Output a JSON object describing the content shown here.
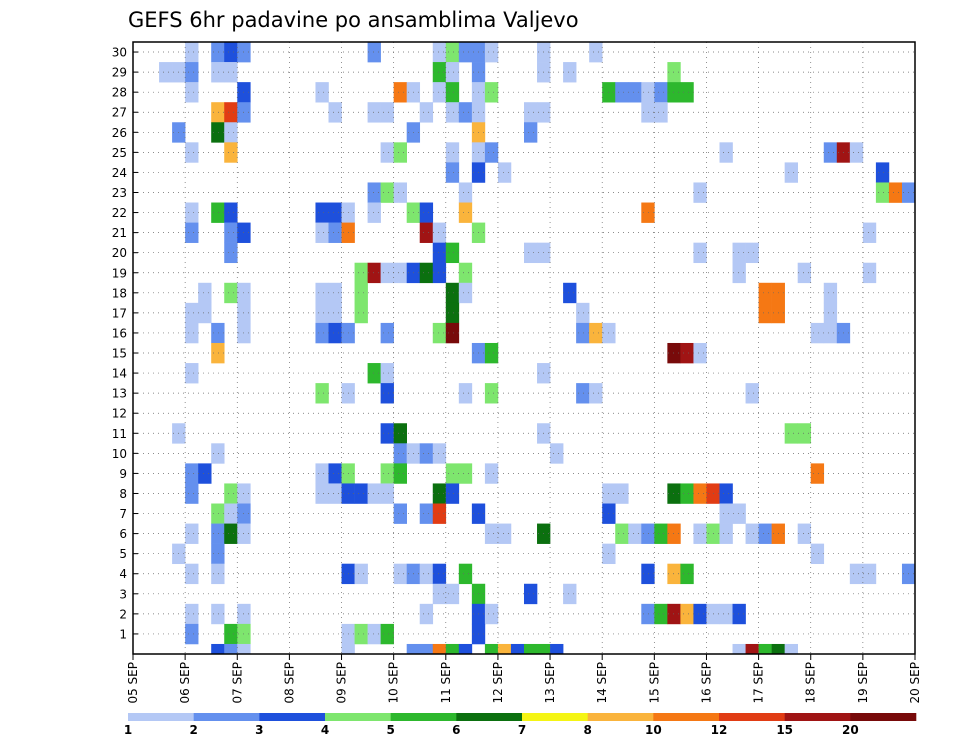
{
  "chart_data": {
    "type": "heatmap",
    "title": "GEFS 6hr padavine po ansamblima Valjevo",
    "xlabel": "",
    "ylabel": "",
    "x_tick_labels": [
      "05 SEP",
      "06 SEP",
      "07 SEP",
      "08 SEP",
      "09 SEP",
      "10 SEP",
      "11 SEP",
      "12 SEP",
      "13 SEP",
      "14 SEP",
      "15 SEP",
      "16 SEP",
      "17 SEP",
      "18 SEP",
      "19 SEP",
      "20 SEP"
    ],
    "y_tick_labels": [
      "1",
      "2",
      "3",
      "4",
      "5",
      "6",
      "7",
      "8",
      "9",
      "10",
      "11",
      "12",
      "13",
      "14",
      "15",
      "16",
      "17",
      "18",
      "19",
      "20",
      "21",
      "22",
      "23",
      "24",
      "25",
      "26",
      "27",
      "28",
      "29",
      "30"
    ],
    "x_steps": 60,
    "steps_per_day": 4,
    "grid": true,
    "colorbar": {
      "labels": [
        "1",
        "2",
        "3",
        "4",
        "5",
        "6",
        "7",
        "8",
        "10",
        "12",
        "15",
        "20"
      ],
      "colors": [
        "#b4c8f5",
        "#6490ee",
        "#1e50dc",
        "#7ee66e",
        "#2db82d",
        "#0b700f",
        "#f5f514",
        "#fab43c",
        "#f57814",
        "#e13c14",
        "#a01414",
        "#780a0a"
      ]
    },
    "cells": [
      [
        4,
        30,
        1
      ],
      [
        6,
        30,
        2
      ],
      [
        7,
        30,
        3
      ],
      [
        8,
        30,
        2
      ],
      [
        18,
        30,
        2
      ],
      [
        23,
        30,
        1
      ],
      [
        24,
        30,
        4
      ],
      [
        25,
        30,
        2
      ],
      [
        26,
        30,
        2
      ],
      [
        27,
        30,
        1
      ],
      [
        31,
        30,
        1
      ],
      [
        35,
        30,
        1
      ],
      [
        2,
        29,
        1
      ],
      [
        3,
        29,
        1
      ],
      [
        4,
        29,
        2
      ],
      [
        6,
        29,
        1
      ],
      [
        7,
        29,
        1
      ],
      [
        23,
        29,
        5
      ],
      [
        24,
        29,
        1
      ],
      [
        26,
        29,
        2
      ],
      [
        31,
        29,
        1
      ],
      [
        33,
        29,
        1
      ],
      [
        41,
        29,
        4
      ],
      [
        4,
        28,
        1
      ],
      [
        8,
        28,
        3
      ],
      [
        14,
        28,
        1
      ],
      [
        20,
        28,
        9
      ],
      [
        21,
        28,
        1
      ],
      [
        23,
        28,
        1
      ],
      [
        24,
        28,
        5
      ],
      [
        26,
        28,
        1
      ],
      [
        27,
        28,
        4
      ],
      [
        36,
        28,
        5
      ],
      [
        37,
        28,
        2
      ],
      [
        38,
        28,
        2
      ],
      [
        39,
        28,
        1
      ],
      [
        40,
        28,
        2
      ],
      [
        41,
        28,
        5
      ],
      [
        42,
        28,
        5
      ],
      [
        6,
        27,
        8
      ],
      [
        7,
        27,
        10
      ],
      [
        8,
        27,
        2
      ],
      [
        15,
        27,
        1
      ],
      [
        18,
        27,
        1
      ],
      [
        19,
        27,
        1
      ],
      [
        22,
        27,
        1
      ],
      [
        24,
        27,
        1
      ],
      [
        25,
        27,
        2
      ],
      [
        26,
        27,
        1
      ],
      [
        30,
        27,
        1
      ],
      [
        31,
        27,
        1
      ],
      [
        39,
        27,
        1
      ],
      [
        40,
        27,
        1
      ],
      [
        3,
        26,
        2
      ],
      [
        6,
        26,
        6
      ],
      [
        7,
        26,
        1
      ],
      [
        21,
        26,
        2
      ],
      [
        26,
        26,
        8
      ],
      [
        30,
        26,
        2
      ],
      [
        4,
        25,
        1
      ],
      [
        7,
        25,
        8
      ],
      [
        19,
        25,
        1
      ],
      [
        20,
        25,
        4
      ],
      [
        24,
        25,
        1
      ],
      [
        26,
        25,
        1
      ],
      [
        27,
        25,
        2
      ],
      [
        45,
        25,
        1
      ],
      [
        53,
        25,
        2
      ],
      [
        54,
        25,
        11
      ],
      [
        55,
        25,
        1
      ],
      [
        24,
        24,
        2
      ],
      [
        26,
        24,
        3
      ],
      [
        28,
        24,
        1
      ],
      [
        50,
        24,
        1
      ],
      [
        57,
        24,
        3
      ],
      [
        18,
        23,
        2
      ],
      [
        19,
        23,
        4
      ],
      [
        20,
        23,
        1
      ],
      [
        25,
        23,
        1
      ],
      [
        43,
        23,
        1
      ],
      [
        57,
        23,
        4
      ],
      [
        58,
        23,
        9
      ],
      [
        59,
        23,
        2
      ],
      [
        4,
        22,
        1
      ],
      [
        6,
        22,
        5
      ],
      [
        7,
        22,
        3
      ],
      [
        14,
        22,
        3
      ],
      [
        15,
        22,
        3
      ],
      [
        16,
        22,
        1
      ],
      [
        18,
        22,
        1
      ],
      [
        21,
        22,
        4
      ],
      [
        22,
        22,
        3
      ],
      [
        25,
        22,
        8
      ],
      [
        39,
        22,
        9
      ],
      [
        4,
        21,
        2
      ],
      [
        7,
        21,
        2
      ],
      [
        8,
        21,
        3
      ],
      [
        14,
        21,
        1
      ],
      [
        15,
        21,
        2
      ],
      [
        16,
        21,
        9
      ],
      [
        22,
        21,
        11
      ],
      [
        23,
        21,
        1
      ],
      [
        26,
        21,
        4
      ],
      [
        56,
        21,
        1
      ],
      [
        7,
        20,
        2
      ],
      [
        23,
        20,
        3
      ],
      [
        24,
        20,
        5
      ],
      [
        30,
        20,
        1
      ],
      [
        31,
        20,
        1
      ],
      [
        43,
        20,
        1
      ],
      [
        46,
        20,
        1
      ],
      [
        47,
        20,
        1
      ],
      [
        17,
        19,
        4
      ],
      [
        18,
        19,
        11
      ],
      [
        19,
        19,
        1
      ],
      [
        20,
        19,
        1
      ],
      [
        21,
        19,
        3
      ],
      [
        22,
        19,
        6
      ],
      [
        23,
        19,
        3
      ],
      [
        25,
        19,
        4
      ],
      [
        46,
        19,
        1
      ],
      [
        51,
        19,
        1
      ],
      [
        56,
        19,
        1
      ],
      [
        5,
        18,
        1
      ],
      [
        7,
        18,
        4
      ],
      [
        8,
        18,
        1
      ],
      [
        14,
        18,
        1
      ],
      [
        15,
        18,
        1
      ],
      [
        17,
        18,
        4
      ],
      [
        24,
        18,
        6
      ],
      [
        25,
        18,
        1
      ],
      [
        33,
        18,
        3
      ],
      [
        48,
        18,
        9
      ],
      [
        49,
        18,
        9
      ],
      [
        53,
        18,
        1
      ],
      [
        4,
        17,
        1
      ],
      [
        5,
        17,
        1
      ],
      [
        8,
        17,
        1
      ],
      [
        14,
        17,
        1
      ],
      [
        15,
        17,
        1
      ],
      [
        17,
        17,
        4
      ],
      [
        24,
        17,
        6
      ],
      [
        34,
        17,
        1
      ],
      [
        48,
        17,
        9
      ],
      [
        49,
        17,
        9
      ],
      [
        53,
        17,
        1
      ],
      [
        4,
        16,
        1
      ],
      [
        6,
        16,
        2
      ],
      [
        8,
        16,
        1
      ],
      [
        14,
        16,
        2
      ],
      [
        15,
        16,
        3
      ],
      [
        16,
        16,
        2
      ],
      [
        19,
        16,
        2
      ],
      [
        23,
        16,
        4
      ],
      [
        24,
        16,
        12
      ],
      [
        34,
        16,
        2
      ],
      [
        35,
        16,
        8
      ],
      [
        36,
        16,
        1
      ],
      [
        52,
        16,
        1
      ],
      [
        53,
        16,
        1
      ],
      [
        54,
        16,
        2
      ],
      [
        6,
        15,
        8
      ],
      [
        26,
        15,
        2
      ],
      [
        27,
        15,
        5
      ],
      [
        41,
        15,
        12
      ],
      [
        42,
        15,
        11
      ],
      [
        43,
        15,
        1
      ],
      [
        4,
        14,
        1
      ],
      [
        18,
        14,
        5
      ],
      [
        19,
        14,
        1
      ],
      [
        31,
        14,
        1
      ],
      [
        14,
        13,
        4
      ],
      [
        16,
        13,
        1
      ],
      [
        19,
        13,
        3
      ],
      [
        25,
        13,
        1
      ],
      [
        27,
        13,
        4
      ],
      [
        34,
        13,
        2
      ],
      [
        35,
        13,
        1
      ],
      [
        47,
        13,
        1
      ],
      [
        3,
        11,
        1
      ],
      [
        19,
        11,
        3
      ],
      [
        20,
        11,
        6
      ],
      [
        31,
        11,
        1
      ],
      [
        50,
        11,
        4
      ],
      [
        51,
        11,
        4
      ],
      [
        6,
        10,
        1
      ],
      [
        20,
        10,
        2
      ],
      [
        21,
        10,
        1
      ],
      [
        22,
        10,
        2
      ],
      [
        23,
        10,
        1
      ],
      [
        32,
        10,
        1
      ],
      [
        4,
        9,
        2
      ],
      [
        5,
        9,
        3
      ],
      [
        14,
        9,
        1
      ],
      [
        15,
        9,
        3
      ],
      [
        16,
        9,
        4
      ],
      [
        19,
        9,
        4
      ],
      [
        20,
        9,
        5
      ],
      [
        24,
        9,
        4
      ],
      [
        25,
        9,
        4
      ],
      [
        27,
        9,
        1
      ],
      [
        52,
        9,
        9
      ],
      [
        4,
        8,
        2
      ],
      [
        7,
        8,
        4
      ],
      [
        8,
        8,
        1
      ],
      [
        14,
        8,
        1
      ],
      [
        15,
        8,
        1
      ],
      [
        16,
        8,
        3
      ],
      [
        17,
        8,
        3
      ],
      [
        18,
        8,
        1
      ],
      [
        19,
        8,
        1
      ],
      [
        23,
        8,
        6
      ],
      [
        24,
        8,
        3
      ],
      [
        36,
        8,
        1
      ],
      [
        37,
        8,
        1
      ],
      [
        41,
        8,
        6
      ],
      [
        42,
        8,
        5
      ],
      [
        43,
        8,
        9
      ],
      [
        44,
        8,
        10
      ],
      [
        45,
        8,
        3
      ],
      [
        6,
        7,
        4
      ],
      [
        7,
        7,
        1
      ],
      [
        8,
        7,
        2
      ],
      [
        20,
        7,
        2
      ],
      [
        22,
        7,
        2
      ],
      [
        23,
        7,
        10
      ],
      [
        26,
        7,
        3
      ],
      [
        36,
        7,
        3
      ],
      [
        45,
        7,
        1
      ],
      [
        46,
        7,
        1
      ],
      [
        4,
        6,
        1
      ],
      [
        6,
        6,
        2
      ],
      [
        7,
        6,
        6
      ],
      [
        8,
        6,
        1
      ],
      [
        27,
        6,
        1
      ],
      [
        28,
        6,
        1
      ],
      [
        31,
        6,
        6
      ],
      [
        37,
        6,
        4
      ],
      [
        38,
        6,
        1
      ],
      [
        39,
        6,
        2
      ],
      [
        40,
        6,
        5
      ],
      [
        41,
        6,
        9
      ],
      [
        43,
        6,
        1
      ],
      [
        44,
        6,
        4
      ],
      [
        45,
        6,
        1
      ],
      [
        47,
        6,
        1
      ],
      [
        48,
        6,
        2
      ],
      [
        49,
        6,
        9
      ],
      [
        51,
        6,
        1
      ],
      [
        3,
        5,
        1
      ],
      [
        6,
        5,
        2
      ],
      [
        36,
        5,
        1
      ],
      [
        52,
        5,
        1
      ],
      [
        4,
        4,
        1
      ],
      [
        6,
        4,
        1
      ],
      [
        16,
        4,
        3
      ],
      [
        17,
        4,
        1
      ],
      [
        20,
        4,
        1
      ],
      [
        21,
        4,
        2
      ],
      [
        22,
        4,
        1
      ],
      [
        23,
        4,
        3
      ],
      [
        25,
        4,
        5
      ],
      [
        39,
        4,
        3
      ],
      [
        41,
        4,
        8
      ],
      [
        42,
        4,
        5
      ],
      [
        55,
        4,
        1
      ],
      [
        56,
        4,
        1
      ],
      [
        59,
        4,
        2
      ],
      [
        23,
        3,
        1
      ],
      [
        24,
        3,
        1
      ],
      [
        26,
        3,
        5
      ],
      [
        30,
        3,
        3
      ],
      [
        33,
        3,
        1
      ],
      [
        4,
        2,
        1
      ],
      [
        6,
        2,
        1
      ],
      [
        8,
        2,
        1
      ],
      [
        22,
        2,
        1
      ],
      [
        26,
        2,
        3
      ],
      [
        27,
        2,
        1
      ],
      [
        39,
        2,
        2
      ],
      [
        40,
        2,
        5
      ],
      [
        41,
        2,
        11
      ],
      [
        42,
        2,
        8
      ],
      [
        43,
        2,
        3
      ],
      [
        44,
        2,
        1
      ],
      [
        45,
        2,
        1
      ],
      [
        46,
        2,
        3
      ],
      [
        4,
        1,
        2
      ],
      [
        7,
        1,
        5
      ],
      [
        8,
        1,
        4
      ],
      [
        16,
        1,
        1
      ],
      [
        17,
        1,
        4
      ],
      [
        18,
        1,
        1
      ],
      [
        19,
        1,
        5
      ],
      [
        26,
        1,
        3
      ],
      [
        6,
        0,
        3
      ],
      [
        7,
        0,
        2
      ],
      [
        8,
        0,
        1
      ],
      [
        16,
        0,
        1
      ],
      [
        21,
        0,
        2
      ],
      [
        22,
        0,
        2
      ],
      [
        23,
        0,
        9
      ],
      [
        24,
        0,
        5
      ],
      [
        25,
        0,
        3
      ],
      [
        27,
        0,
        5
      ],
      [
        28,
        0,
        8
      ],
      [
        29,
        0,
        3
      ],
      [
        30,
        0,
        5
      ],
      [
        31,
        0,
        5
      ],
      [
        32,
        0,
        3
      ],
      [
        46,
        0,
        1
      ],
      [
        47,
        0,
        11
      ],
      [
        48,
        0,
        5
      ],
      [
        49,
        0,
        6
      ],
      [
        50,
        0,
        1
      ]
    ]
  }
}
